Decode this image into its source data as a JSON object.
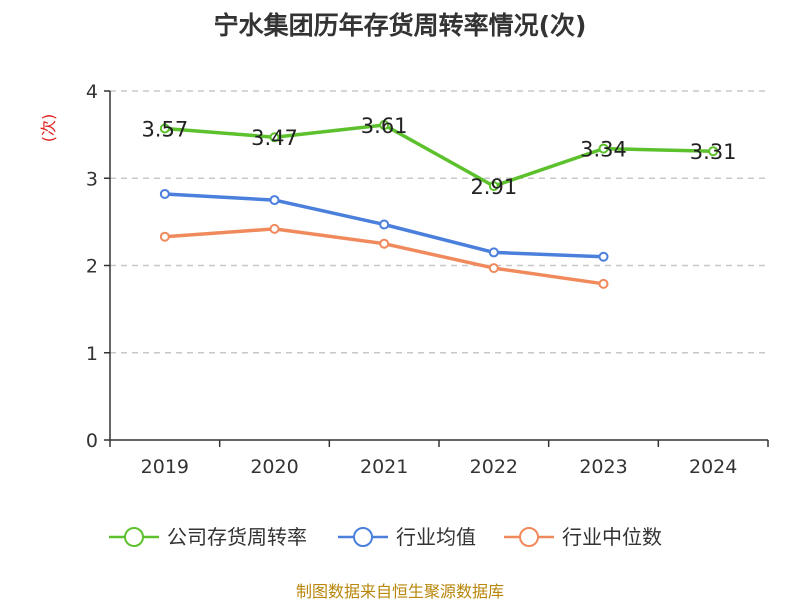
{
  "title": "宁水集团历年存货周转率情况(次)",
  "source_note": "制图数据来自恒生聚源数据库",
  "chart_data": {
    "type": "line",
    "title": "宁水集团历年存货周转率情况(次)",
    "ylabel": "(次)",
    "xlabel": "",
    "categories": [
      "2019",
      "2020",
      "2021",
      "2022",
      "2023",
      "2024"
    ],
    "ylim": [
      0,
      4
    ],
    "yticks": [
      0,
      1,
      2,
      3,
      4
    ],
    "grid": true,
    "legend_position": "bottom",
    "series": [
      {
        "name": "公司存货周转率",
        "color": "#5cc12c",
        "values": [
          3.57,
          3.47,
          3.61,
          2.91,
          3.34,
          3.31
        ],
        "show_labels": true
      },
      {
        "name": "行业均值",
        "color": "#4a7fdc",
        "values": [
          2.82,
          2.75,
          2.47,
          2.15,
          2.1,
          null
        ],
        "show_labels": false
      },
      {
        "name": "行业中位数",
        "color": "#f08a5d",
        "values": [
          2.33,
          2.42,
          2.25,
          1.97,
          1.79,
          null
        ],
        "show_labels": false
      }
    ]
  }
}
